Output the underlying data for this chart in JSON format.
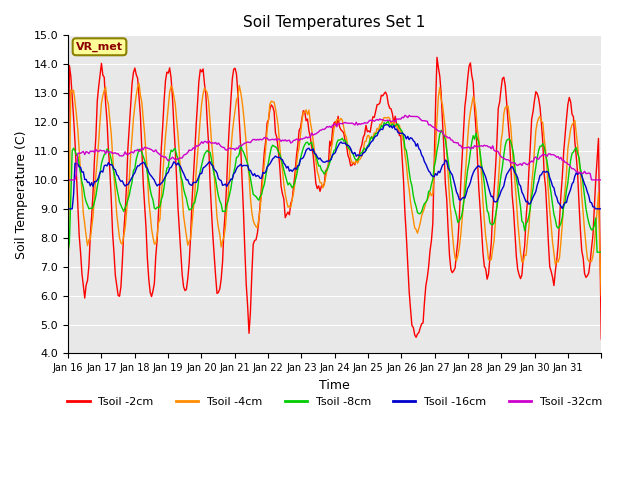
{
  "title": "Soil Temperatures Set 1",
  "xlabel": "Time",
  "ylabel": "Soil Temperature (C)",
  "ylim": [
    4.0,
    15.0
  ],
  "yticks": [
    4.0,
    5.0,
    6.0,
    7.0,
    8.0,
    9.0,
    10.0,
    11.0,
    12.0,
    13.0,
    14.0,
    15.0
  ],
  "xtick_labels": [
    "Jan 16",
    "Jan 17",
    "Jan 18",
    "Jan 19",
    "Jan 20",
    "Jan 21",
    "Jan 22",
    "Jan 23",
    "Jan 24",
    "Jan 25",
    "Jan 26",
    "Jan 27",
    "Jan 28",
    "Jan 29",
    "Jan 30",
    "Jan 31"
  ],
  "colors": {
    "Tsoil -2cm": "#ff0000",
    "Tsoil -4cm": "#ff8c00",
    "Tsoil -8cm": "#00cc00",
    "Tsoil -16cm": "#0000cc",
    "Tsoil -32cm": "#cc00cc"
  },
  "plot_bg": "#e8e8e8",
  "legend_label": "VR_met",
  "annotation_box_color": "#ffff99",
  "annotation_box_edge": "#8B8000"
}
